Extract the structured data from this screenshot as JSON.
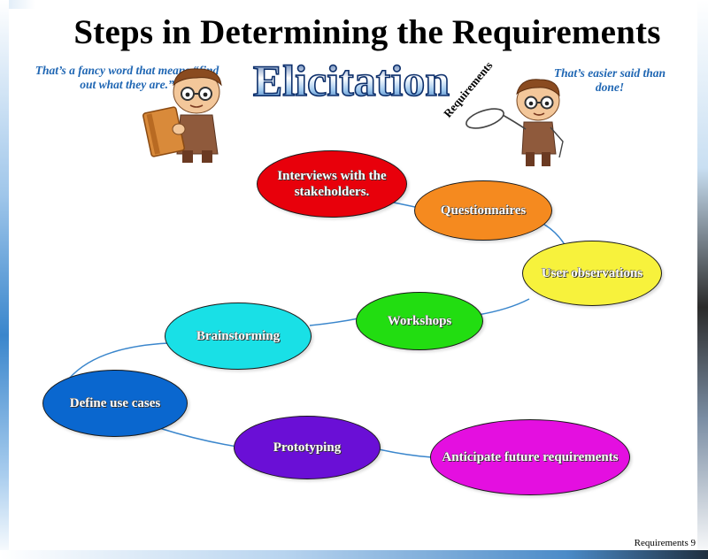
{
  "slide": {
    "title": "Steps in Determining the Requirements",
    "wordart": "Elicitation",
    "note_left": "That’s a fancy word that means “find out what they are.”",
    "note_right": "That’s easier said than done!",
    "lasso_label": "Requirements",
    "footer": "Requirements 9"
  },
  "icons": {
    "figure_left": "person-holding-book-icon",
    "figure_right": "person-with-lasso-icon"
  },
  "nodes": [
    {
      "id": "interviews",
      "label": "Interviews with the stakeholders.",
      "color": "#e8000b"
    },
    {
      "id": "questionnaires",
      "label": "Questionnaires",
      "color": "#f58a1f"
    },
    {
      "id": "user-observations",
      "label": "User observations",
      "color": "#f7f23c"
    },
    {
      "id": "workshops",
      "label": "Workshops",
      "color": "#22dd11"
    },
    {
      "id": "brainstorming",
      "label": "Brainstorming",
      "color": "#19e0e6"
    },
    {
      "id": "define-use-cases",
      "label": "Define use cases",
      "color": "#0a67cf"
    },
    {
      "id": "prototyping",
      "label": "Prototyping",
      "color": "#6a0fd6"
    },
    {
      "id": "anticipate-future",
      "label": "Anticipate future requirements",
      "color": "#e40fe0"
    }
  ]
}
